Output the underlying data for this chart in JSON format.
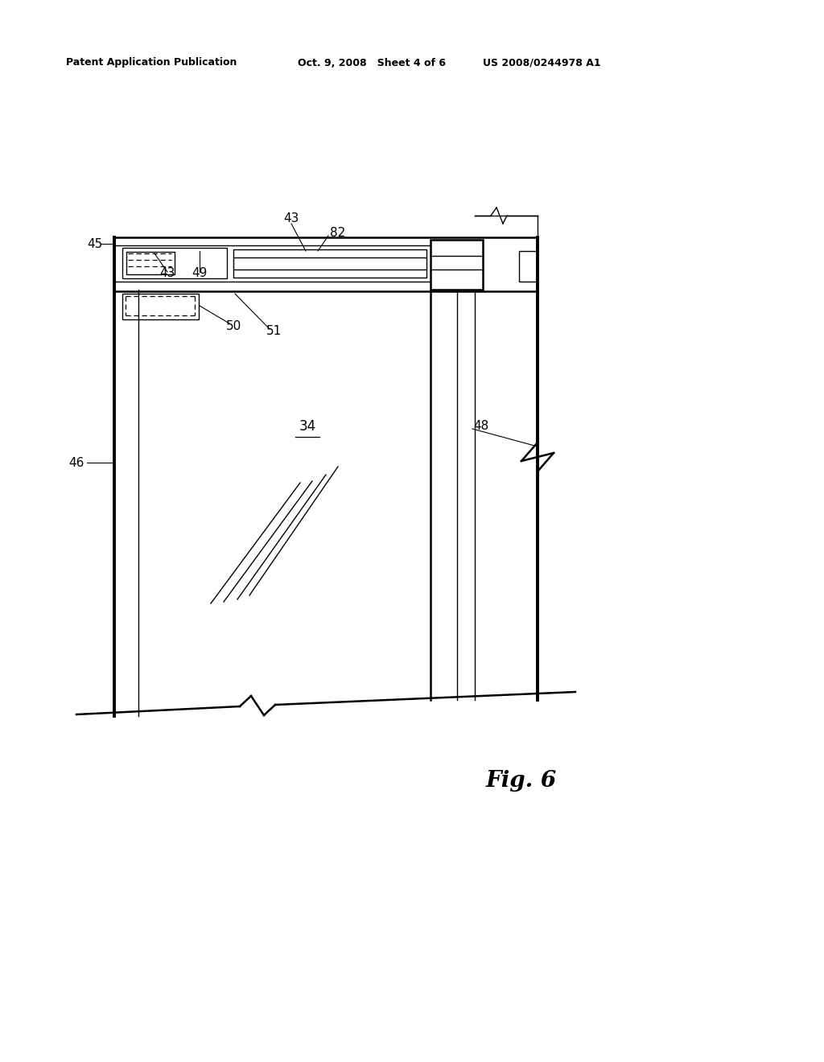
{
  "bg_color": "#ffffff",
  "line_color": "#000000",
  "header_left": "Patent Application Publication",
  "header_center": "Oct. 9, 2008   Sheet 4 of 6",
  "header_right": "US 2008/0244978 A1",
  "fig_label": "Fig. 6"
}
